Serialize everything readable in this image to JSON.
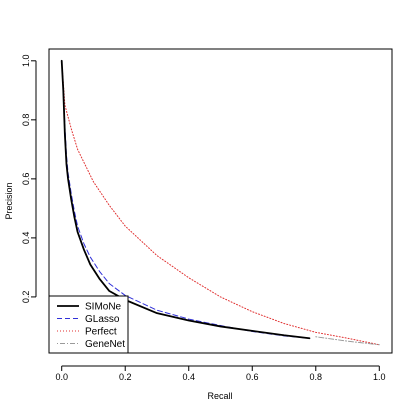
{
  "chart_data": {
    "type": "line",
    "title": "",
    "xlabel": "Recall",
    "ylabel": "Precision",
    "xlim": [
      -0.04,
      1.04
    ],
    "ylim": [
      0.01,
      1.04
    ],
    "xticks": [
      "0.0",
      "0.2",
      "0.4",
      "0.6",
      "0.8",
      "1.0"
    ],
    "yticks": [
      "0.2",
      "0.4",
      "0.6",
      "0.8",
      "1.0"
    ],
    "grid": false,
    "legend_position": "bottom-left",
    "series": [
      {
        "name": "SIMoNe",
        "color": "#000000",
        "style": "solid",
        "points": [
          [
            0.0,
            1.0
          ],
          [
            0.005,
            0.9
          ],
          [
            0.01,
            0.75
          ],
          [
            0.015,
            0.65
          ],
          [
            0.02,
            0.6
          ],
          [
            0.03,
            0.53
          ],
          [
            0.04,
            0.47
          ],
          [
            0.05,
            0.42
          ],
          [
            0.07,
            0.36
          ],
          [
            0.09,
            0.31
          ],
          [
            0.12,
            0.26
          ],
          [
            0.15,
            0.22
          ],
          [
            0.2,
            0.19
          ],
          [
            0.3,
            0.145
          ],
          [
            0.4,
            0.12
          ],
          [
            0.5,
            0.1
          ],
          [
            0.6,
            0.085
          ],
          [
            0.7,
            0.07
          ],
          [
            0.78,
            0.06
          ]
        ]
      },
      {
        "name": "GLasso",
        "color": "#3030d8",
        "style": "dashed",
        "points": [
          [
            0.0,
            1.0
          ],
          [
            0.005,
            0.9
          ],
          [
            0.01,
            0.78
          ],
          [
            0.015,
            0.68
          ],
          [
            0.02,
            0.62
          ],
          [
            0.03,
            0.55
          ],
          [
            0.04,
            0.49
          ],
          [
            0.05,
            0.44
          ],
          [
            0.07,
            0.38
          ],
          [
            0.09,
            0.335
          ],
          [
            0.12,
            0.285
          ],
          [
            0.15,
            0.245
          ],
          [
            0.2,
            0.205
          ],
          [
            0.3,
            0.155
          ],
          [
            0.4,
            0.125
          ],
          [
            0.5,
            0.103
          ],
          [
            0.6,
            0.083
          ],
          [
            0.7,
            0.068
          ],
          [
            0.78,
            0.06
          ]
        ]
      },
      {
        "name": "Perfect",
        "color": "#e03030",
        "style": "dotted",
        "points": [
          [
            0.0,
            1.0
          ],
          [
            0.01,
            0.85
          ],
          [
            0.03,
            0.77
          ],
          [
            0.05,
            0.7
          ],
          [
            0.1,
            0.59
          ],
          [
            0.15,
            0.51
          ],
          [
            0.2,
            0.44
          ],
          [
            0.3,
            0.34
          ],
          [
            0.4,
            0.265
          ],
          [
            0.5,
            0.2
          ],
          [
            0.6,
            0.15
          ],
          [
            0.7,
            0.11
          ],
          [
            0.8,
            0.08
          ],
          [
            0.9,
            0.06
          ],
          [
            1.0,
            0.038
          ]
        ]
      },
      {
        "name": "GeneNet",
        "color": "#9a9a9a",
        "style": "dotdash",
        "points": [
          [
            0.8,
            0.065
          ],
          [
            0.9,
            0.05
          ],
          [
            1.0,
            0.038
          ]
        ]
      }
    ]
  }
}
